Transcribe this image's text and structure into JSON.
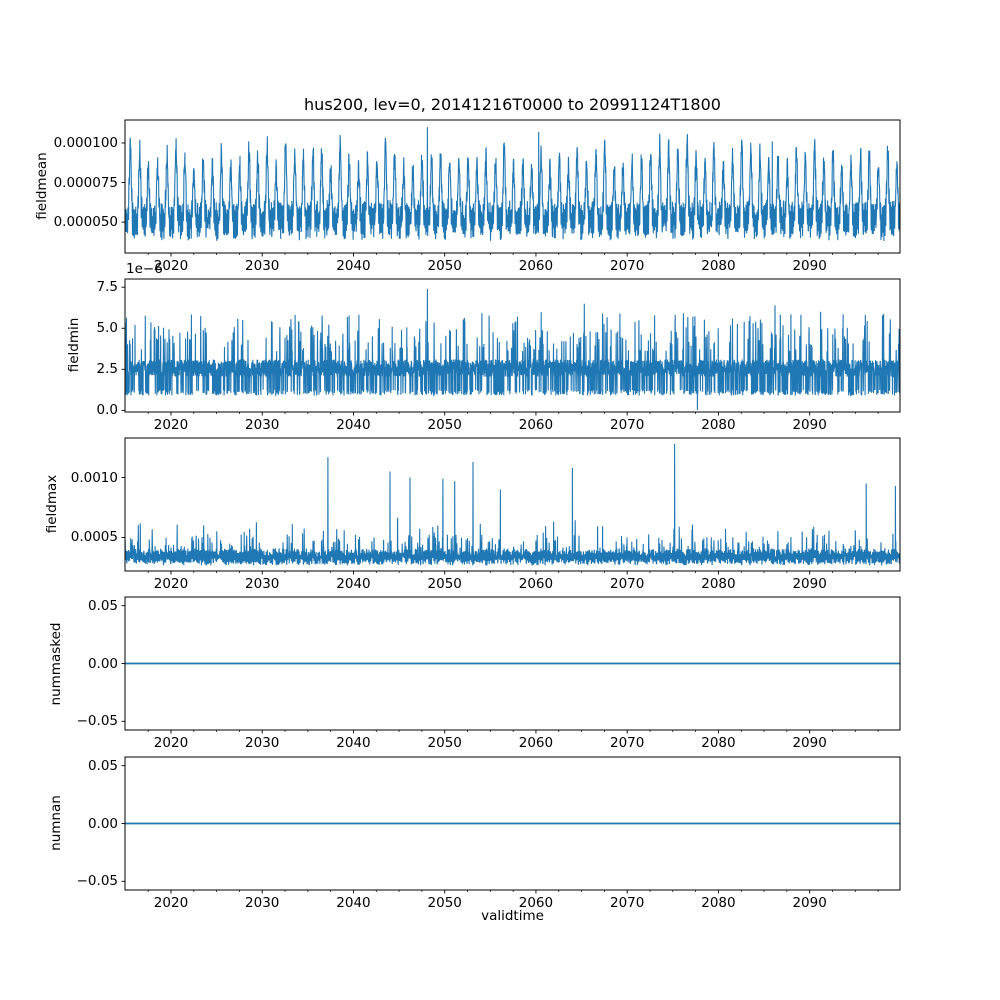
{
  "figure": {
    "title": "hus200, lev=0, 20141216T0000 to 20991124T1800",
    "xlabel": "validtime",
    "background": "#ffffff",
    "line_color": "#1f77b4",
    "axis_color": "#000000",
    "text_color": "#000000"
  },
  "x_axis": {
    "label": "validtime",
    "limits": [
      2014.96,
      2099.9
    ],
    "major_ticks": [
      {
        "value": 2020,
        "label": "2020"
      },
      {
        "value": 2030,
        "label": "2030"
      },
      {
        "value": 2040,
        "label": "2040"
      },
      {
        "value": 2050,
        "label": "2050"
      },
      {
        "value": 2060,
        "label": "2060"
      },
      {
        "value": 2070,
        "label": "2070"
      },
      {
        "value": 2080,
        "label": "2080"
      },
      {
        "value": 2090,
        "label": "2090"
      }
    ],
    "minor_tick_start": 2017.5,
    "minor_tick_step": 2.5
  },
  "chart_data": [
    {
      "type": "line",
      "ylabel": "fieldmean",
      "offset_text": "",
      "ylim": [
        3.05e-05,
        0.0001145
      ],
      "yticks": [
        {
          "value": 5e-05,
          "label": "0.000050"
        },
        {
          "value": 7.5e-05,
          "label": "0.000075"
        },
        {
          "value": 0.0001,
          "label": "0.000100"
        }
      ],
      "series": {
        "gen": "seasonal",
        "seed": 11,
        "dt": 0.02,
        "base": 5.1e-05,
        "bump_amp": 4e-05,
        "bump_center": 0.54,
        "bump_width": 0.1,
        "fast_freq": 9.3,
        "fast_amp": 7.5e-06,
        "noise": 1.1e-05,
        "notable_points": [
          {
            "x": 2048.1,
            "y": 0.00011
          },
          {
            "x": 2060.3,
            "y": 0.000107
          },
          {
            "x": 2085.9,
            "y": 0.000101
          }
        ]
      }
    },
    {
      "type": "line",
      "ylabel": "fieldmin",
      "offset_text": "1e−6",
      "ylim": [
        -1e-07,
        8e-06
      ],
      "yticks": [
        {
          "value": 0.0,
          "label": "0.0"
        },
        {
          "value": 2.5e-06,
          "label": "2.5"
        },
        {
          "value": 5e-06,
          "label": "5.0"
        },
        {
          "value": 7.5e-06,
          "label": "7.5"
        }
      ],
      "series": {
        "gen": "spiky",
        "seed": 22,
        "dt": 0.02,
        "scale": 1e-06,
        "band_lo": 2.05,
        "band_hi": 3.1,
        "down_p": 0.16,
        "down_lo": 0.9,
        "down_hi": 1.25,
        "up_p": 0.06,
        "up_lo": 3.6,
        "up_hi": 5.2,
        "up2_p": 0.015,
        "up2_lo": 5.2,
        "up2_hi": 6.0,
        "notable_points": [
          {
            "x": 2048.1,
            "y": 7.4
          },
          {
            "x": 2065.3,
            "y": 6.5
          },
          {
            "x": 2067.3,
            "y": 5.9
          },
          {
            "x": 2069.2,
            "y": 5.9
          },
          {
            "x": 2086.2,
            "y": 6.4
          },
          {
            "x": 2091.2,
            "y": 6.0
          },
          {
            "x": 2077.7,
            "y": 0.02
          }
        ]
      }
    },
    {
      "type": "line",
      "ylabel": "fieldmax",
      "offset_text": "",
      "ylim": [
        0.00022,
        0.00133
      ],
      "yticks": [
        {
          "value": 0.0005,
          "label": "0.0005"
        },
        {
          "value": 0.001,
          "label": "0.0010"
        }
      ],
      "series": {
        "gen": "spikymax",
        "seed": 33,
        "dt": 0.02,
        "base": 0.0003,
        "band": 7.5e-05,
        "fast_freq": 7.7,
        "fast_amp": 3.5e-05,
        "peak_p": 0.05,
        "peak_lo": 5e-05,
        "peak_hi": 0.00017,
        "peak2_p": 0.012,
        "peak2_lo": 0.00015,
        "peak2_hi": 0.00028,
        "notable_points": [
          {
            "x": 2037.2,
            "y": 0.00117
          },
          {
            "x": 2044.0,
            "y": 0.00105
          },
          {
            "x": 2046.2,
            "y": 0.001
          },
          {
            "x": 2049.8,
            "y": 0.00099
          },
          {
            "x": 2051.1,
            "y": 0.00097
          },
          {
            "x": 2053.1,
            "y": 0.00113
          },
          {
            "x": 2056.1,
            "y": 0.0009
          },
          {
            "x": 2064.0,
            "y": 0.00108
          },
          {
            "x": 2075.2,
            "y": 0.00128
          },
          {
            "x": 2096.2,
            "y": 0.00095
          },
          {
            "x": 2099.4,
            "y": 0.00093
          }
        ]
      }
    },
    {
      "type": "line",
      "ylabel": "nummasked",
      "offset_text": "",
      "ylim": [
        -0.0575,
        0.0575
      ],
      "yticks": [
        {
          "value": -0.05,
          "label": "−0.05"
        },
        {
          "value": 0.0,
          "label": "0.00"
        },
        {
          "value": 0.05,
          "label": "0.05"
        }
      ],
      "series": {
        "gen": "constant",
        "value": 0
      }
    },
    {
      "type": "line",
      "ylabel": "numnan",
      "offset_text": "",
      "ylim": [
        -0.0575,
        0.0575
      ],
      "yticks": [
        {
          "value": -0.05,
          "label": "−0.05"
        },
        {
          "value": 0.0,
          "label": "0.00"
        },
        {
          "value": 0.05,
          "label": "0.05"
        }
      ],
      "series": {
        "gen": "constant",
        "value": 0
      }
    }
  ]
}
